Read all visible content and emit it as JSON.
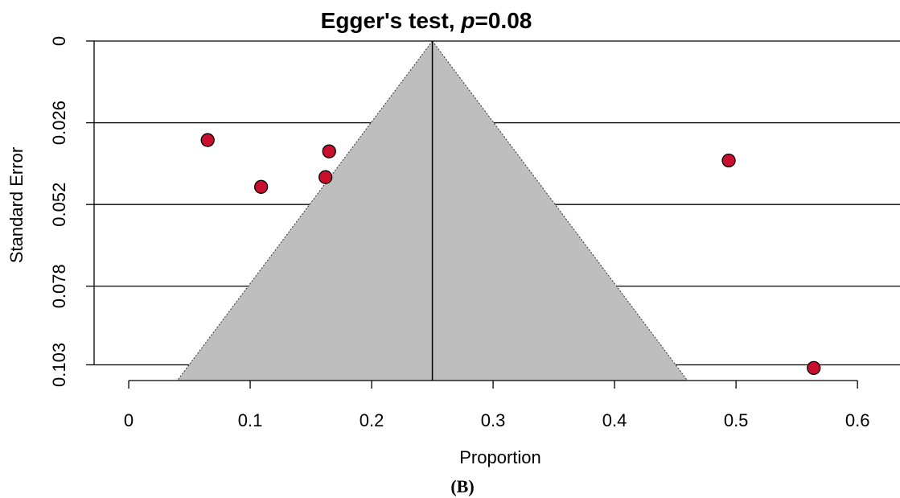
{
  "chart_data": {
    "type": "funnel",
    "title_parts": [
      "Egger's test, ",
      "p",
      "=0.08"
    ],
    "xlabel": "Proportion",
    "ylabel": "Standard Error",
    "caption": "(B)",
    "x": [
      0.065,
      0.109,
      0.165,
      0.162,
      0.494,
      0.564
    ],
    "values": [
      0.0315,
      0.0464,
      0.0351,
      0.0433,
      0.038,
      0.104
    ],
    "estimate": 0.25,
    "funnel_bounds": [
      0.04,
      0.46
    ],
    "color": "#c8102e",
    "funnel_color": "#bebebe",
    "xlim": [
      -0.0285,
      0.635
    ],
    "ylim": [
      0,
      0.108
    ],
    "xticks": [
      0,
      0.1,
      0.2,
      0.3,
      0.4,
      0.5,
      0.6
    ],
    "yticks": [
      0,
      0.026,
      0.052,
      0.078,
      0.103
    ],
    "grid": true
  }
}
